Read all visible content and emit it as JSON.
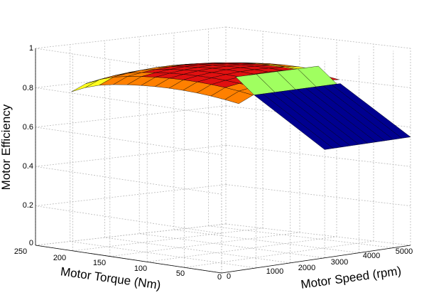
{
  "chart_data": {
    "type": "surface",
    "zlabel": "Motor Efficiency",
    "xlabel": "Motor Torque (Nm)",
    "ylabel": "Motor Speed (rpm)",
    "z_ticks": [
      "0",
      "0.2",
      "0.4",
      "0.6",
      "0.8",
      "1"
    ],
    "torque_ticks": [
      "250",
      "200",
      "150",
      "100",
      "50",
      "0"
    ],
    "speed_ticks": [
      "0",
      "1000",
      "2000",
      "3000",
      "4000",
      "5000"
    ],
    "zlim": [
      0,
      1
    ],
    "torque_range": [
      0,
      250
    ],
    "speed_range": [
      0,
      5500
    ],
    "grid": true,
    "colormap": "jet",
    "surface_note": "efficiency map; high torque / high speed region saturated at ~0.55 (blue plane)",
    "color_bands": {
      "dark_red": "#7f0000",
      "red": "#e01010",
      "orange": "#ff8000",
      "yellow": "#ffff20",
      "light_green": "#a0ff60",
      "blue": "#000090"
    }
  }
}
